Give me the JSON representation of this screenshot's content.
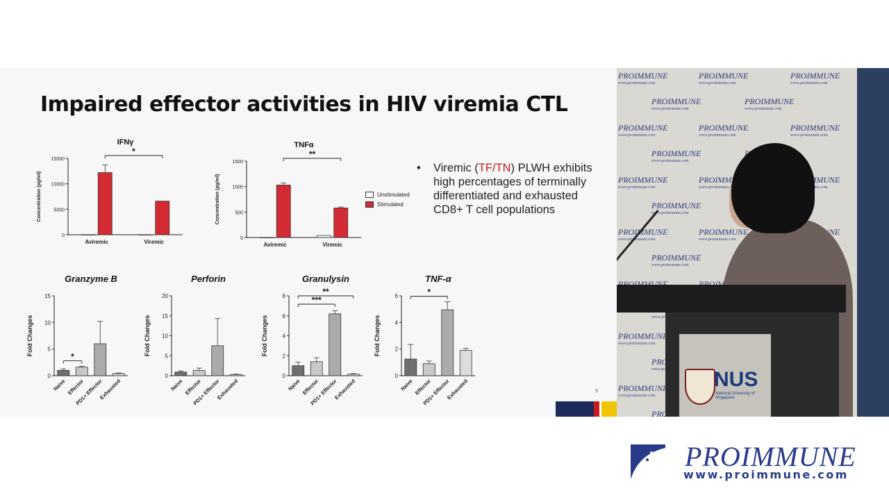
{
  "slide": {
    "title": "Impaired effector activities in HIV viremia CTL",
    "bullet_symbol": "•",
    "bullet_pre": "Viremic (",
    "bullet_highlight": "TF/TN",
    "bullet_post": ") PLWH exhibits high percentages of terminally differentiated and exhausted CD8+ T cell populations",
    "page_number": "9",
    "legend": {
      "unstimulated": "Unstimulated",
      "stimulated": "Stimulated"
    },
    "colors": {
      "stimulated": "#d42a33",
      "unstimulated": "#ffffff",
      "naive": "#6e6e6e",
      "effector": "#c8c8c8",
      "pd1_effector": "#a9aca9",
      "exhausted": "#dcdcdc",
      "accent_red": "#c8191f",
      "strip_navy": "#1d2a5a",
      "strip_red": "#c8191f",
      "strip_yellow": "#f1c400"
    }
  },
  "chart_data": [
    {
      "id": "ifng",
      "type": "bar",
      "title": "IFNγ",
      "ylabel": "Concentration (pg/ml)",
      "categories": [
        "Aviremic",
        "Viremic"
      ],
      "ylim": [
        0,
        15000
      ],
      "yticks": [
        0,
        5000,
        10000,
        15000
      ],
      "series": [
        {
          "name": "Unstimulated",
          "values": [
            0,
            0
          ]
        },
        {
          "name": "Stimulated",
          "values": [
            12200,
            6600
          ],
          "errors": [
            1500,
            0
          ]
        }
      ],
      "significance": [
        {
          "label": "*",
          "from": "Aviremic",
          "to": "Viremic"
        }
      ]
    },
    {
      "id": "tnfa",
      "type": "bar",
      "title": "TNFα",
      "ylabel": "Concentration (pg/ml)",
      "categories": [
        "Aviremic",
        "Viremic"
      ],
      "ylim": [
        0,
        1500
      ],
      "yticks": [
        0,
        500,
        1000,
        1500
      ],
      "series": [
        {
          "name": "Unstimulated",
          "values": [
            0,
            40
          ]
        },
        {
          "name": "Stimulated",
          "values": [
            1030,
            580
          ],
          "errors": [
            40,
            20
          ]
        }
      ],
      "significance": [
        {
          "label": "**",
          "from": "Aviremic",
          "to": "Viremic"
        }
      ]
    },
    {
      "id": "granzyme",
      "type": "bar",
      "title": "Granzyme B",
      "ylabel": "Fold Changes",
      "categories": [
        "Naive",
        "Effector",
        "PD1+ Effector",
        "Exhausted"
      ],
      "ylim": [
        0,
        15
      ],
      "yticks": [
        0,
        5,
        10,
        15
      ],
      "values": [
        1.0,
        1.6,
        6.0,
        0.4
      ],
      "errors": [
        0.3,
        0.15,
        4.2,
        0.1
      ],
      "significance": [
        {
          "label": "*",
          "from": 0,
          "to": 1
        }
      ]
    },
    {
      "id": "perforin",
      "type": "bar",
      "title": "Perforin",
      "ylabel": "Fold Changes",
      "categories": [
        "Naive",
        "Effector",
        "PD1+ Effector",
        "Exhausted"
      ],
      "ylim": [
        0,
        20
      ],
      "yticks": [
        0,
        5,
        10,
        15,
        20
      ],
      "values": [
        0.9,
        1.3,
        7.5,
        0.3
      ],
      "errors": [
        0.3,
        0.6,
        6.8,
        0.1
      ],
      "significance": []
    },
    {
      "id": "granulysin",
      "type": "bar",
      "title": "Granulysin",
      "ylabel": "Fold Changes",
      "categories": [
        "Naive",
        "Effector",
        "PD1+ Effector",
        "Exhausted"
      ],
      "ylim": [
        0,
        8
      ],
      "yticks": [
        0,
        2,
        4,
        6,
        8
      ],
      "values": [
        1.0,
        1.4,
        6.2,
        0.15
      ],
      "errors": [
        0.35,
        0.4,
        0.3,
        0.05
      ],
      "significance": [
        {
          "label": "***",
          "from": 0,
          "to": 2
        },
        {
          "label": "**",
          "from": 0,
          "to": 3
        }
      ]
    },
    {
      "id": "tnfa_fold",
      "type": "bar",
      "title": "TNF-α",
      "ylabel": "Fold Changes",
      "categories": [
        "Naive",
        "Effector",
        "PD1+ Effector",
        "Exhausted"
      ],
      "ylim": [
        0,
        6
      ],
      "yticks": [
        0,
        2,
        4,
        6
      ],
      "values": [
        1.25,
        0.9,
        4.95,
        1.9
      ],
      "errors": [
        1.1,
        0.2,
        0.6,
        0.15
      ],
      "significance": [
        {
          "label": "*",
          "from": 0,
          "to": 2
        }
      ]
    }
  ],
  "video": {
    "backdrop_brand": "PROIMMUNE",
    "backdrop_url": "www.proimmune.com",
    "podium_logo": "NUS",
    "podium_sub": "National University of Singapore"
  },
  "watermark": {
    "name": "PROIMMUNE",
    "url": "www.proimmune.com"
  }
}
